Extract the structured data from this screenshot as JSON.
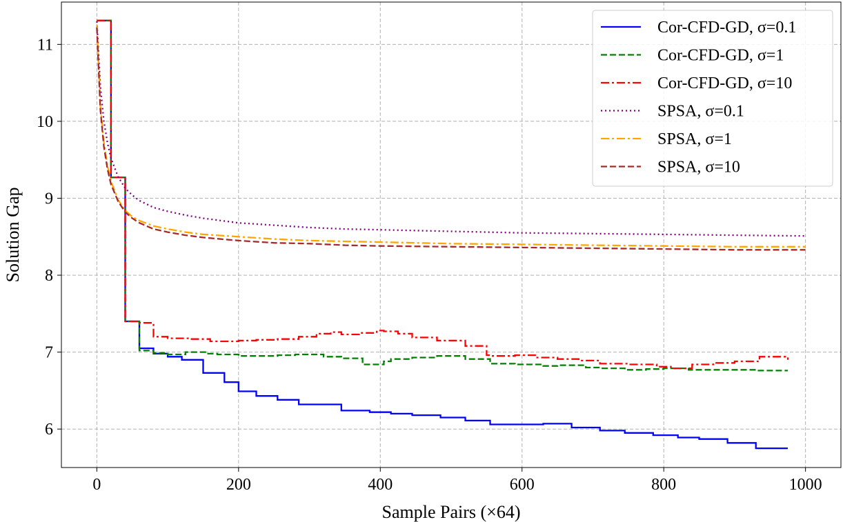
{
  "chart_data": {
    "type": "line",
    "xlabel": "Sample Pairs (×64)",
    "ylabel": "Solution Gap",
    "xlim": [
      -50,
      1050
    ],
    "ylim": [
      5.5,
      11.55
    ],
    "xticks": [
      0,
      200,
      400,
      600,
      800,
      1000
    ],
    "yticks": [
      6,
      7,
      8,
      9,
      10,
      11
    ],
    "xtick_labels": [
      "0",
      "200",
      "400",
      "600",
      "800",
      "1000"
    ],
    "ytick_labels": [
      "6",
      "7",
      "8",
      "9",
      "10",
      "11"
    ],
    "grid": true,
    "legend_position": "top-right",
    "series": [
      {
        "name": "Cor-CFD-GD, σ=0.1",
        "color": "#0000ff",
        "dash": "solid",
        "step": true,
        "x": [
          0,
          20,
          40,
          60,
          80,
          100,
          120,
          150,
          180,
          200,
          225,
          255,
          285,
          345,
          385,
          415,
          445,
          485,
          520,
          555,
          630,
          670,
          710,
          745,
          785,
          820,
          850,
          890,
          930,
          975
        ],
        "y": [
          11.31,
          9.27,
          7.4,
          7.05,
          6.98,
          6.94,
          6.9,
          6.73,
          6.61,
          6.49,
          6.43,
          6.38,
          6.32,
          6.24,
          6.22,
          6.2,
          6.18,
          6.15,
          6.11,
          6.06,
          6.07,
          6.02,
          5.98,
          5.95,
          5.92,
          5.89,
          5.87,
          5.82,
          5.75,
          5.75
        ]
      },
      {
        "name": "Cor-CFD-GD, σ=1",
        "color": "#008000",
        "dash": "dashed",
        "step": true,
        "x": [
          0,
          20,
          40,
          60,
          80,
          100,
          125,
          155,
          170,
          200,
          255,
          280,
          320,
          345,
          375,
          405,
          415,
          445,
          480,
          520,
          555,
          590,
          630,
          650,
          690,
          710,
          745,
          775,
          800,
          835,
          880,
          930,
          975
        ],
        "y": [
          11.31,
          9.27,
          7.4,
          7.02,
          6.99,
          6.97,
          7.0,
          6.98,
          6.97,
          6.95,
          6.96,
          6.97,
          6.94,
          6.92,
          6.84,
          6.88,
          6.91,
          6.93,
          6.95,
          6.91,
          6.85,
          6.84,
          6.82,
          6.83,
          6.8,
          6.79,
          6.77,
          6.78,
          6.79,
          6.77,
          6.77,
          6.76,
          6.76
        ]
      },
      {
        "name": "Cor-CFD-GD, σ=10",
        "color": "#ff0000",
        "dash": "dashdot",
        "step": true,
        "x": [
          0,
          20,
          40,
          60,
          80,
          100,
          130,
          160,
          180,
          200,
          225,
          255,
          285,
          310,
          330,
          345,
          370,
          395,
          405,
          425,
          445,
          480,
          520,
          550,
          555,
          590,
          620,
          650,
          680,
          710,
          750,
          790,
          810,
          840,
          870,
          900,
          935,
          975
        ],
        "y": [
          11.31,
          9.27,
          7.4,
          7.38,
          7.2,
          7.18,
          7.17,
          7.14,
          7.14,
          7.15,
          7.16,
          7.17,
          7.2,
          7.24,
          7.26,
          7.23,
          7.25,
          7.28,
          7.27,
          7.24,
          7.19,
          7.15,
          7.08,
          6.96,
          6.95,
          6.96,
          6.93,
          6.91,
          6.89,
          6.85,
          6.84,
          6.81,
          6.79,
          6.84,
          6.86,
          6.88,
          6.94,
          6.9
        ]
      },
      {
        "name": "SPSA, σ=0.1",
        "color": "#800080",
        "dash": "dotted",
        "step": false,
        "x": [
          0,
          5,
          10,
          15,
          20,
          30,
          40,
          50,
          60,
          80,
          100,
          125,
          150,
          200,
          250,
          300,
          350,
          400,
          500,
          600,
          700,
          800,
          900,
          1000
        ],
        "y": [
          11.3,
          10.45,
          10.0,
          9.72,
          9.52,
          9.28,
          9.13,
          9.04,
          8.97,
          8.88,
          8.83,
          8.78,
          8.74,
          8.68,
          8.65,
          8.62,
          8.6,
          8.59,
          8.57,
          8.55,
          8.54,
          8.53,
          8.52,
          8.51
        ]
      },
      {
        "name": "SPSA, σ=1",
        "color": "#ffa500",
        "dash": "dashdot",
        "step": false,
        "x": [
          0,
          5,
          10,
          15,
          20,
          30,
          40,
          50,
          60,
          80,
          100,
          125,
          150,
          200,
          250,
          300,
          350,
          400,
          500,
          600,
          700,
          800,
          900,
          1000
        ],
        "y": [
          11.25,
          10.2,
          9.72,
          9.42,
          9.22,
          8.98,
          8.84,
          8.76,
          8.71,
          8.64,
          8.6,
          8.56,
          8.53,
          8.5,
          8.47,
          8.45,
          8.44,
          8.43,
          8.41,
          8.4,
          8.39,
          8.38,
          8.37,
          8.37
        ]
      },
      {
        "name": "SPSA, σ=10",
        "color": "#a52a2a",
        "dash": "dashed",
        "step": false,
        "x": [
          0,
          5,
          10,
          15,
          20,
          30,
          40,
          50,
          60,
          80,
          100,
          125,
          150,
          200,
          250,
          300,
          350,
          400,
          500,
          600,
          700,
          800,
          900,
          1000
        ],
        "y": [
          11.22,
          10.15,
          9.67,
          9.38,
          9.18,
          8.96,
          8.82,
          8.74,
          8.68,
          8.6,
          8.56,
          8.52,
          8.49,
          8.45,
          8.42,
          8.41,
          8.39,
          8.38,
          8.37,
          8.36,
          8.35,
          8.34,
          8.33,
          8.33
        ]
      }
    ]
  }
}
